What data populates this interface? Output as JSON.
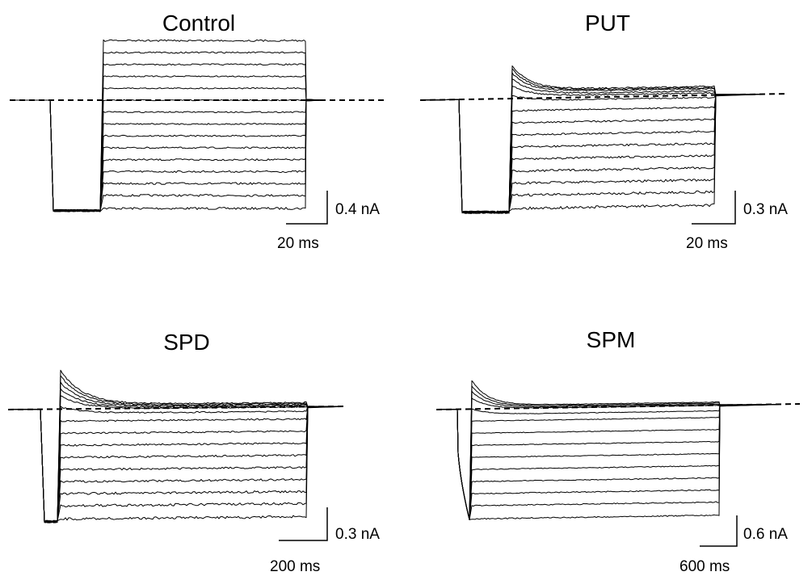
{
  "chart_data": [
    {
      "type": "line",
      "title": "Control",
      "scale_bar": {
        "current": "0.4 nA",
        "time": "20 ms"
      },
      "sweeps": 15,
      "levels": [
        -1.0,
        -0.88,
        -0.77,
        -0.66,
        -0.55,
        -0.44,
        -0.33,
        -0.22,
        -0.11,
        0.0,
        0.11,
        0.22,
        0.33,
        0.44,
        0.55
      ],
      "peak_extra": [
        0,
        0,
        0,
        0,
        0,
        0,
        0,
        0,
        0,
        0,
        0,
        0,
        0,
        0,
        0
      ],
      "tail_level": 0.0,
      "noise": 0.7
    },
    {
      "type": "line",
      "title": "PUT",
      "scale_bar": {
        "current": "0.3 nA",
        "time": "20 ms"
      },
      "sweeps": 15,
      "levels": [
        -1.0,
        -0.88,
        -0.77,
        -0.66,
        -0.55,
        -0.44,
        -0.33,
        -0.22,
        -0.11,
        -0.02,
        0.02,
        0.04,
        0.06,
        0.07,
        0.08
      ],
      "peak_extra": [
        0,
        0,
        0,
        0,
        0,
        0,
        0,
        0,
        0,
        0.05,
        0.1,
        0.14,
        0.17,
        0.2,
        0.22
      ],
      "tail_level": 0.0,
      "noise": 0.8
    },
    {
      "type": "line",
      "title": "SPD",
      "scale_bar": {
        "current": "0.3 nA",
        "time": "200 ms"
      },
      "sweeps": 15,
      "levels": [
        -1.0,
        -0.88,
        -0.77,
        -0.66,
        -0.55,
        -0.44,
        -0.33,
        -0.22,
        -0.11,
        -0.04,
        0.0,
        0.01,
        0.02,
        0.03,
        0.04
      ],
      "peak_extra": [
        0,
        0,
        0,
        0,
        0,
        0,
        0,
        0,
        0,
        0.06,
        0.12,
        0.17,
        0.22,
        0.27,
        0.31
      ],
      "tail_level": 0.0,
      "noise": 0.8
    },
    {
      "type": "line",
      "title": "SPM",
      "scale_bar": {
        "current": "0.6 nA",
        "time": "600 ms"
      },
      "sweeps": 14,
      "levels": [
        -1.0,
        -0.88,
        -0.77,
        -0.66,
        -0.55,
        -0.44,
        -0.33,
        -0.22,
        -0.11,
        -0.05,
        0.0,
        0.01,
        0.02,
        0.03
      ],
      "peak_extra": [
        0,
        0,
        0,
        0,
        0,
        0,
        0,
        0,
        0,
        0.05,
        0.1,
        0.15,
        0.19,
        0.23
      ],
      "tail_level": 0.0,
      "noise": 0.35
    }
  ]
}
